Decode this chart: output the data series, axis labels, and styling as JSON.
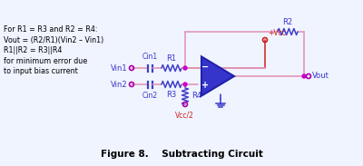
{
  "title": "Figure 8.    Subtracting Circuit",
  "annotation_lines": [
    "For R1 = R3 and R2 = R4:",
    "Vout = (R2/R1)(Vin2 – Vin1)",
    "R1||R2 = R3||R4",
    "for minimum error due",
    "to input bias current"
  ],
  "wire_color": "#e090b0",
  "resistor_color": "#4040c8",
  "opamp_face": "#3535cc",
  "opamp_edge": "#2020aa",
  "node_color": "#cc00cc",
  "terminal_color": "#aa00aa",
  "vcc_color": "#cc2020",
  "ground_color": "#3535cc",
  "text_color": "#3535cc",
  "annotation_color": "#000000",
  "title_color": "#000000",
  "bg_color": "#f0f4ff"
}
